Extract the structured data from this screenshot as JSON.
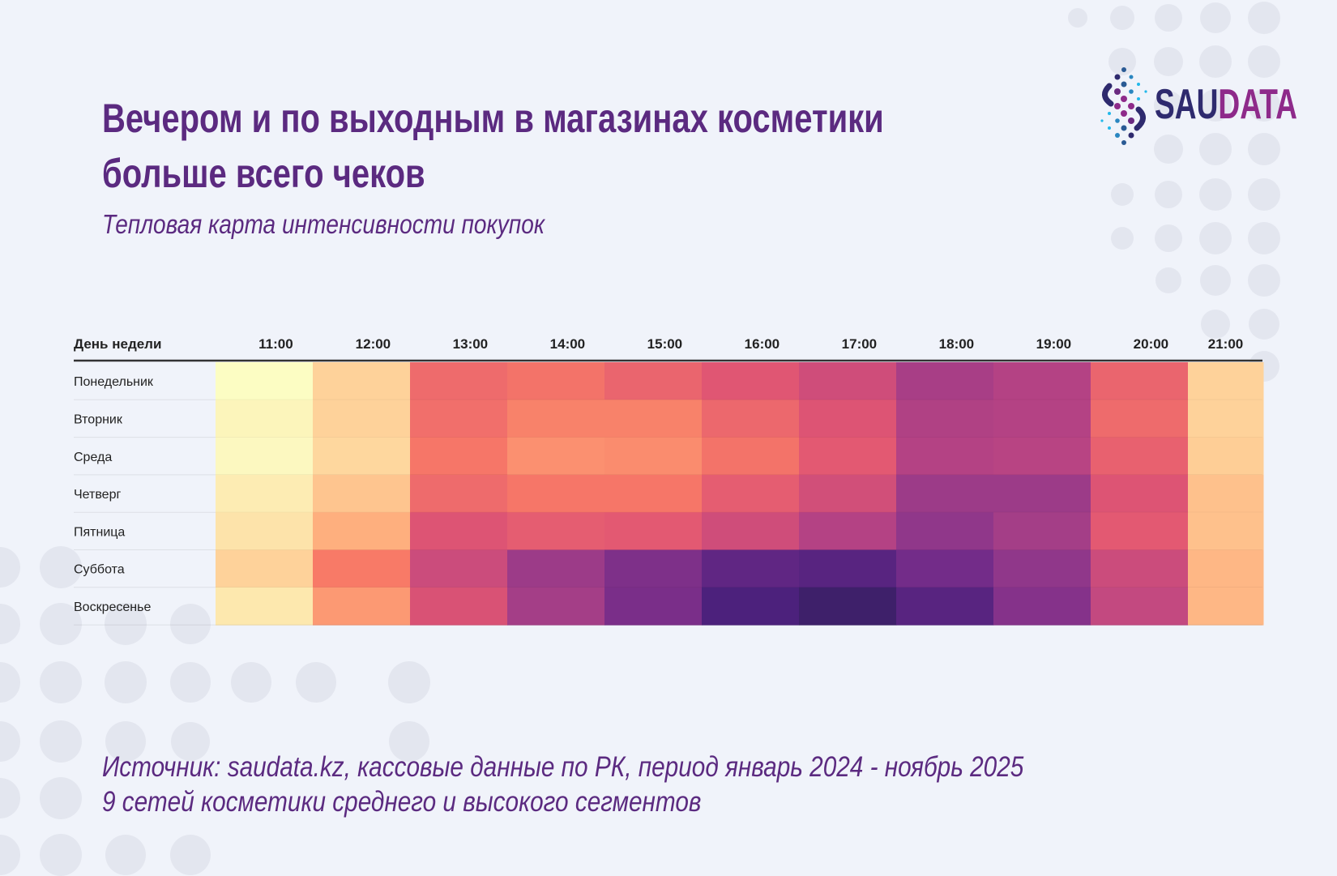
{
  "title_lines": [
    "Вечером и по выходным в магазинах косметики",
    "больше всего чеков"
  ],
  "subtitle": "Тепловая карта интенсивности покупок",
  "source_lines": [
    "Источник: saudata.kz, кассовые данные по РК, период январь 2024 - ноябрь 2025",
    "9 сетей косметики среднего и высокого сегментов"
  ],
  "logo": {
    "text_part1": "SAU",
    "text_part2": "DATA",
    "color1": "#2e2a6e",
    "color2": "#8e2a8a"
  },
  "colors": {
    "title": "#5b2a80",
    "background": "#f0f3fa",
    "decor": "#e3e6ef"
  },
  "chart_data": {
    "type": "heatmap",
    "colormap": "magma (reversed: light = low, dark = high)",
    "row_header": "День недели",
    "x_categories": [
      "11:00",
      "12:00",
      "13:00",
      "14:00",
      "15:00",
      "16:00",
      "17:00",
      "18:00",
      "19:00",
      "20:00",
      "21:00"
    ],
    "y_categories": [
      "Понедельник",
      "Вторник",
      "Среда",
      "Четверг",
      "Пятница",
      "Суббота",
      "Воскресенье"
    ],
    "value_scale": "relative intensity 0-1 (estimated, no scale printed)",
    "values": [
      [
        0.0,
        0.1,
        0.34,
        0.32,
        0.36,
        0.4,
        0.45,
        0.55,
        0.52,
        0.36,
        0.1
      ],
      [
        0.02,
        0.1,
        0.33,
        0.28,
        0.28,
        0.35,
        0.41,
        0.53,
        0.52,
        0.34,
        0.1
      ],
      [
        0.01,
        0.09,
        0.31,
        0.25,
        0.26,
        0.32,
        0.39,
        0.52,
        0.51,
        0.37,
        0.11
      ],
      [
        0.04,
        0.13,
        0.34,
        0.31,
        0.31,
        0.38,
        0.44,
        0.58,
        0.58,
        0.41,
        0.14
      ],
      [
        0.06,
        0.18,
        0.41,
        0.38,
        0.39,
        0.45,
        0.52,
        0.61,
        0.56,
        0.39,
        0.14
      ],
      [
        0.1,
        0.3,
        0.46,
        0.58,
        0.66,
        0.74,
        0.76,
        0.69,
        0.61,
        0.46,
        0.16
      ],
      [
        0.05,
        0.23,
        0.42,
        0.56,
        0.67,
        0.79,
        0.83,
        0.76,
        0.64,
        0.48,
        0.16
      ]
    ]
  }
}
